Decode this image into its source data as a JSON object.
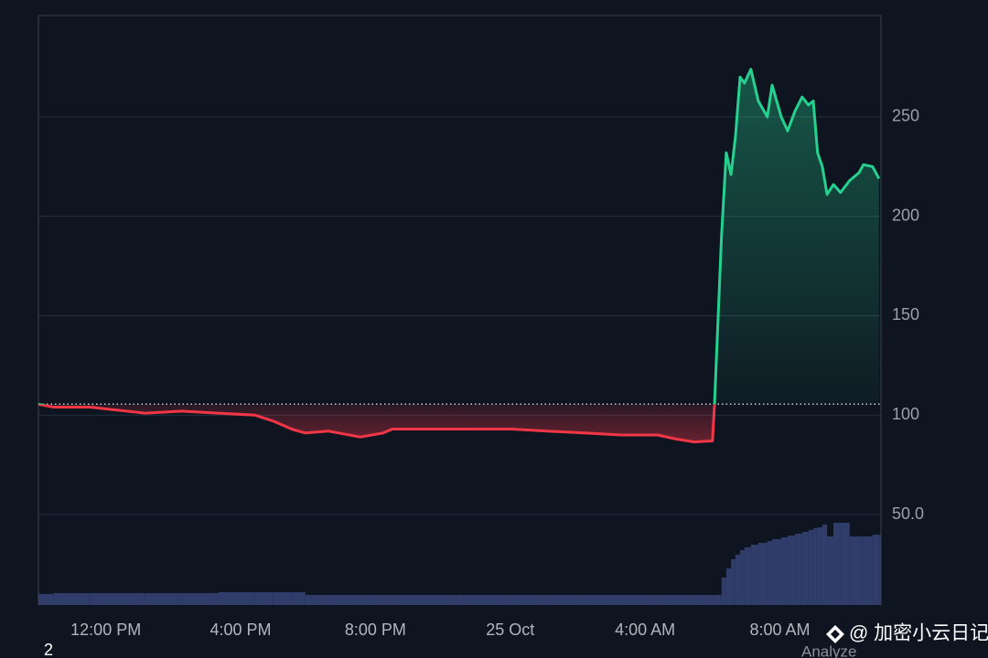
{
  "chart_data": {
    "type": "baseline-line",
    "x": [
      10.0,
      10.45,
      11.54,
      13.17,
      14.25,
      15.34,
      16.43,
      16.97,
      17.51,
      17.92,
      18.6,
      19.55,
      20.23,
      20.5,
      22.4,
      24.03,
      25.11,
      26.2,
      27.29,
      28.37,
      28.92,
      29.46,
      30.0,
      30.06,
      30.27,
      30.41,
      30.55,
      30.68,
      30.82,
      30.95,
      31.14,
      31.36,
      31.63,
      31.77,
      32.04,
      32.23,
      32.45,
      32.66,
      32.85,
      32.99,
      33.12,
      33.26,
      33.4,
      33.59,
      33.8,
      34.07,
      34.35,
      34.48,
      34.75,
      34.94
    ],
    "values": [
      105.5,
      104,
      104,
      101,
      102,
      101,
      100,
      97,
      93,
      91,
      92,
      89,
      91,
      93,
      93,
      93,
      92,
      91,
      90,
      90,
      88,
      86.5,
      87,
      105,
      190,
      232,
      221,
      240,
      270,
      267,
      274,
      258,
      250,
      266,
      250,
      243,
      253,
      260,
      256,
      258,
      232,
      225,
      211,
      216,
      212,
      218,
      222,
      226,
      225,
      219
    ],
    "volume": [
      12,
      13,
      13,
      13,
      13,
      14,
      14,
      14,
      14,
      11,
      11,
      11,
      11,
      11,
      11,
      11,
      11,
      11,
      11,
      11,
      11,
      11,
      11,
      11,
      30,
      40,
      50,
      55,
      60,
      63,
      66,
      68,
      70,
      72,
      74,
      76,
      78,
      80,
      82,
      84,
      85,
      88,
      75,
      90,
      90,
      75,
      75,
      75,
      77,
      77
    ],
    "volume_ylim": [
      0,
      645
    ],
    "baseline": 105.5,
    "xlim": [
      10,
      35
    ],
    "xticks": [
      {
        "value": 12,
        "label": "12:00 PM"
      },
      {
        "value": 16,
        "label": "4:00 PM"
      },
      {
        "value": 20,
        "label": "8:00 PM"
      },
      {
        "value": 24,
        "label": "25 Oct"
      },
      {
        "value": 28,
        "label": "4:00 AM"
      },
      {
        "value": 32,
        "label": "8:00 AM"
      }
    ],
    "ylim": [
      4.5,
      301
    ],
    "yticks": [
      {
        "value": 50,
        "label": "50.0"
      },
      100,
      150,
      200,
      250
    ],
    "grid": true,
    "up_color": "#26d08f",
    "down_color": "#f23645",
    "volume_color": "#303d6b",
    "annotations": [
      "2",
      "Analyze",
      "@ 加密小云日记"
    ]
  }
}
